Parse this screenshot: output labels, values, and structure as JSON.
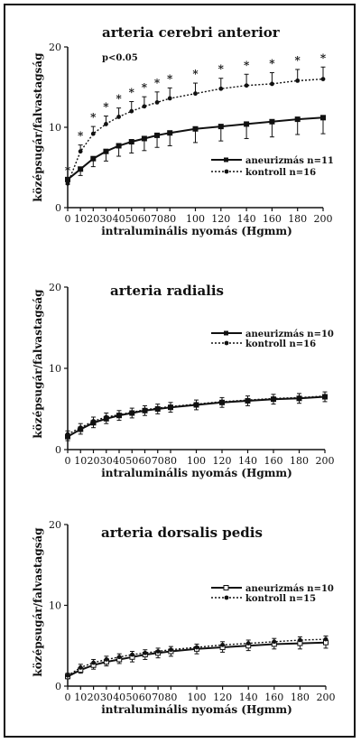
{
  "chart_data": [
    {
      "type": "line",
      "title": "arteria cerebri anterior",
      "xlabel": "intraluminális nyomás (Hgmm)",
      "ylabel": "középsugár/falvastagság",
      "xlim": [
        0,
        200
      ],
      "ylim": [
        0,
        20
      ],
      "x_ticks": [
        0,
        10,
        20,
        30,
        40,
        50,
        60,
        70,
        80,
        100,
        120,
        140,
        160,
        180,
        200
      ],
      "y_ticks": [
        0,
        10,
        20
      ],
      "x": [
        0,
        10,
        20,
        30,
        40,
        50,
        60,
        70,
        80,
        100,
        120,
        140,
        160,
        180,
        200
      ],
      "series": [
        {
          "name": "aneurizmás n=11",
          "style": "solid",
          "values": [
            3.5,
            4.8,
            6.1,
            7.0,
            7.7,
            8.2,
            8.6,
            9.0,
            9.3,
            9.8,
            10.1,
            10.4,
            10.7,
            11.0,
            11.2
          ],
          "errors": [
            0.6,
            0.8,
            1.0,
            1.2,
            1.3,
            1.4,
            1.5,
            1.5,
            1.6,
            1.7,
            1.8,
            1.8,
            1.9,
            1.9,
            2.0
          ]
        },
        {
          "name": "kontroll n=16",
          "style": "dotted",
          "values": [
            3.0,
            7.0,
            9.2,
            10.4,
            11.3,
            12.0,
            12.6,
            13.1,
            13.6,
            14.2,
            14.8,
            15.2,
            15.4,
            15.8,
            16.0
          ],
          "errors": [
            0.5,
            0.8,
            0.9,
            1.0,
            1.1,
            1.2,
            1.2,
            1.3,
            1.3,
            1.3,
            1.3,
            1.4,
            1.4,
            1.4,
            1.5
          ]
        }
      ],
      "annotation": "p<0.05",
      "significance_marks": {
        "symbol": "*",
        "x": [
          0,
          10,
          20,
          30,
          40,
          50,
          60,
          70,
          80,
          100,
          120,
          140,
          160,
          180,
          200
        ]
      }
    },
    {
      "type": "line",
      "title": "arteria  radialis",
      "xlabel": "intraluminális nyomás (Hgmm)",
      "ylabel": "középsugár/falvastagság",
      "xlim": [
        0,
        200
      ],
      "ylim": [
        0,
        20
      ],
      "x_ticks": [
        0,
        10,
        20,
        30,
        40,
        50,
        60,
        70,
        80,
        100,
        120,
        140,
        160,
        180,
        200
      ],
      "y_ticks": [
        0,
        10,
        20
      ],
      "x": [
        0,
        10,
        20,
        30,
        40,
        50,
        60,
        70,
        80,
        100,
        120,
        140,
        160,
        180,
        200
      ],
      "series": [
        {
          "name": "aneurizmás n=10",
          "style": "solid",
          "values": [
            1.6,
            2.5,
            3.3,
            3.8,
            4.2,
            4.5,
            4.8,
            5.0,
            5.2,
            5.5,
            5.8,
            6.0,
            6.2,
            6.3,
            6.5
          ],
          "errors": [
            0.5,
            0.6,
            0.6,
            0.6,
            0.6,
            0.6,
            0.6,
            0.6,
            0.6,
            0.6,
            0.6,
            0.6,
            0.6,
            0.6,
            0.6
          ]
        },
        {
          "name": "kontroll n=16",
          "style": "dotted",
          "values": [
            1.9,
            2.7,
            3.5,
            4.0,
            4.3,
            4.6,
            4.9,
            5.1,
            5.3,
            5.6,
            5.9,
            6.1,
            6.3,
            6.4,
            6.6
          ],
          "errors": [
            0.4,
            0.5,
            0.5,
            0.5,
            0.5,
            0.5,
            0.5,
            0.5,
            0.5,
            0.5,
            0.5,
            0.5,
            0.5,
            0.5,
            0.5
          ]
        }
      ]
    },
    {
      "type": "line",
      "title": "arteria  dorsalis  pedis",
      "xlabel": "intraluminális nyomás (Hgmm)",
      "ylabel": "középsugár/falvastagság",
      "xlim": [
        0,
        200
      ],
      "ylim": [
        0,
        20
      ],
      "x_ticks": [
        0,
        10,
        20,
        30,
        40,
        50,
        60,
        70,
        80,
        100,
        120,
        140,
        160,
        180,
        200
      ],
      "y_ticks": [
        0,
        10,
        20
      ],
      "x": [
        0,
        10,
        20,
        30,
        40,
        50,
        60,
        70,
        80,
        100,
        120,
        140,
        160,
        180,
        200
      ],
      "series": [
        {
          "name": "aneurizmás n=10",
          "style": "solid",
          "values": [
            1.2,
            2.0,
            2.6,
            3.0,
            3.3,
            3.6,
            3.9,
            4.1,
            4.3,
            4.6,
            4.8,
            5.0,
            5.2,
            5.3,
            5.4
          ],
          "errors": [
            0.3,
            0.4,
            0.5,
            0.5,
            0.5,
            0.6,
            0.6,
            0.6,
            0.6,
            0.6,
            0.6,
            0.6,
            0.6,
            0.7,
            0.7
          ]
        },
        {
          "name": "kontroll n=15",
          "style": "dotted",
          "values": [
            1.3,
            2.3,
            2.9,
            3.3,
            3.6,
            3.9,
            4.1,
            4.3,
            4.5,
            4.8,
            5.1,
            5.3,
            5.5,
            5.7,
            5.8
          ],
          "errors": [
            0.3,
            0.4,
            0.4,
            0.4,
            0.4,
            0.4,
            0.4,
            0.4,
            0.4,
            0.4,
            0.4,
            0.4,
            0.4,
            0.4,
            0.4
          ]
        }
      ]
    }
  ]
}
